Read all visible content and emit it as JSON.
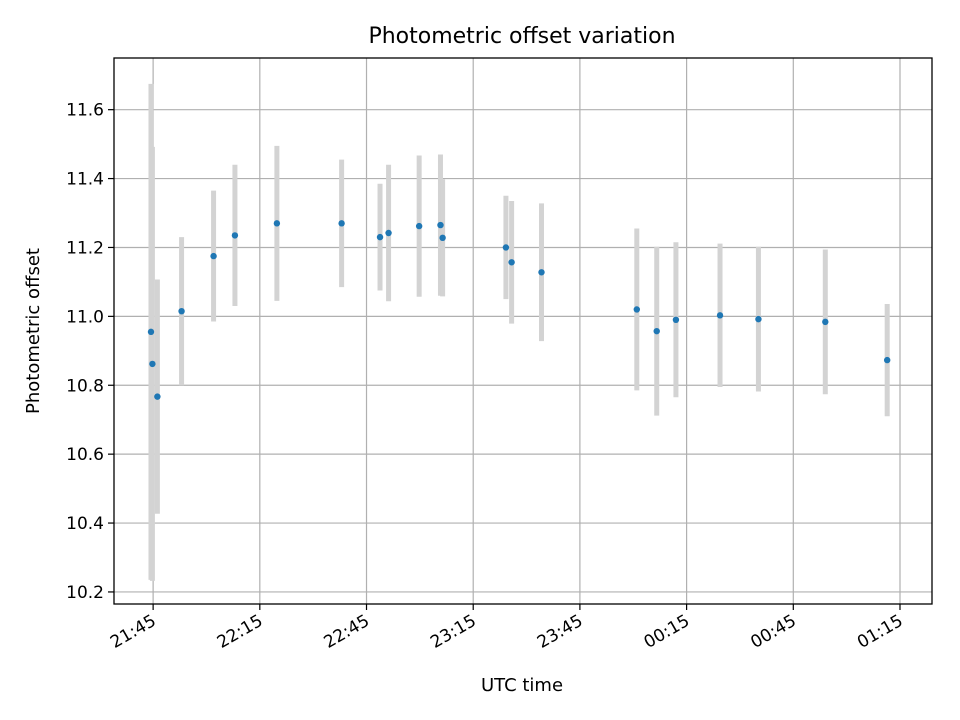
{
  "chart_data": {
    "type": "scatter",
    "title": "Photometric offset variation",
    "xlabel": "UTC time",
    "ylabel": "Photometric offset",
    "x_ticks": [
      "21:45",
      "22:15",
      "22:45",
      "23:15",
      "23:45",
      "00:15",
      "00:45",
      "01:15"
    ],
    "y_ticks": [
      "10.2",
      "10.4",
      "10.6",
      "10.8",
      "11.0",
      "11.2",
      "11.4",
      "11.6"
    ],
    "ylim": [
      10.165,
      11.75
    ],
    "xlim": [
      "21:34",
      "01:24"
    ],
    "grid": true,
    "colors": {
      "marker": "#1f77b4",
      "errorbar": "#d3d3d3",
      "grid": "#b0b0b0"
    },
    "series": [
      {
        "points": [
          {
            "x": "21:44:24",
            "y": 10.955,
            "err": 0.72
          },
          {
            "x": "21:44:48",
            "y": 10.862,
            "err": 0.63
          },
          {
            "x": "21:46:12",
            "y": 10.767,
            "err": 0.34
          },
          {
            "x": "21:53:00",
            "y": 11.015,
            "err": 0.215
          },
          {
            "x": "22:02:00",
            "y": 11.175,
            "err": 0.19
          },
          {
            "x": "22:08:00",
            "y": 11.235,
            "err": 0.205
          },
          {
            "x": "22:19:48",
            "y": 11.27,
            "err": 0.225
          },
          {
            "x": "22:38:00",
            "y": 11.27,
            "err": 0.185
          },
          {
            "x": "22:48:48",
            "y": 11.23,
            "err": 0.155
          },
          {
            "x": "22:51:12",
            "y": 11.242,
            "err": 0.198
          },
          {
            "x": "22:59:48",
            "y": 11.262,
            "err": 0.205
          },
          {
            "x": "23:05:48",
            "y": 11.265,
            "err": 0.205
          },
          {
            "x": "23:06:24",
            "y": 11.228,
            "err": 0.17
          },
          {
            "x": "23:24:12",
            "y": 11.2,
            "err": 0.15
          },
          {
            "x": "23:25:48",
            "y": 11.157,
            "err": 0.178
          },
          {
            "x": "23:34:12",
            "y": 11.128,
            "err": 0.2
          },
          {
            "x": "00:01:00",
            "y": 11.02,
            "err": 0.235
          },
          {
            "x": "00:06:36",
            "y": 10.957,
            "err": 0.245
          },
          {
            "x": "00:12:00",
            "y": 10.99,
            "err": 0.225
          },
          {
            "x": "00:24:24",
            "y": 11.003,
            "err": 0.208
          },
          {
            "x": "00:35:12",
            "y": 10.992,
            "err": 0.21
          },
          {
            "x": "00:54:00",
            "y": 10.984,
            "err": 0.21
          },
          {
            "x": "01:11:24",
            "y": 10.873,
            "err": 0.163
          }
        ]
      }
    ]
  }
}
